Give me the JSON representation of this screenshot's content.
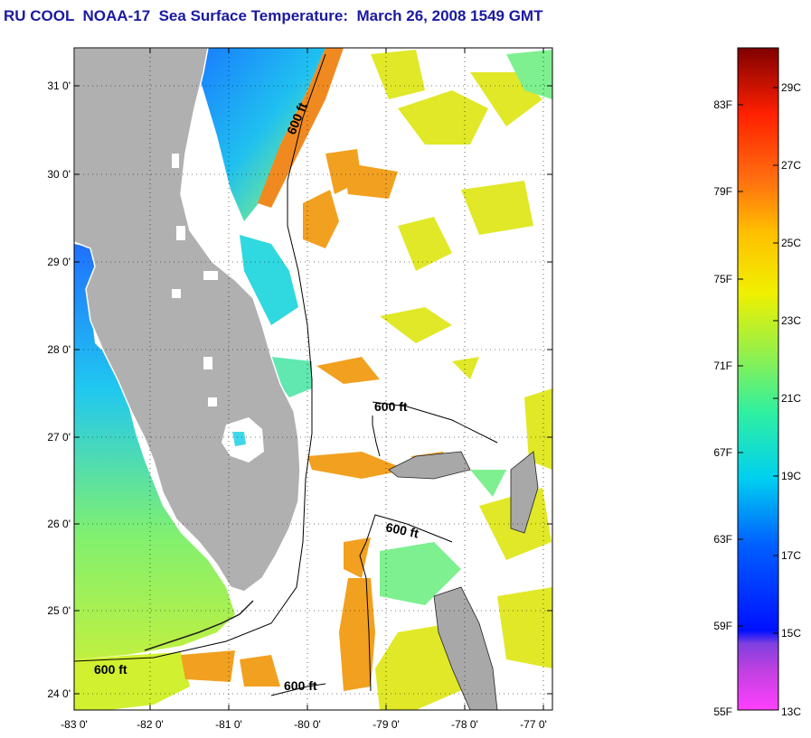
{
  "title": "RU COOL  NOAA-17  Sea Surface Temperature:  March 26, 2008 1549 GMT",
  "axes": {
    "lat_ticks": [
      "31 0'",
      "30 0'",
      "29 0'",
      "28 0'",
      "27 0'",
      "26 0'",
      "25 0'",
      "24 0'"
    ],
    "lon_ticks": [
      "-83 0'",
      "-82 0'",
      "-81 0'",
      "-80 0'",
      "-79 0'",
      "-78 0'",
      "-77 0'"
    ]
  },
  "isobath_labels": [
    "600 ft",
    "600 ft",
    "600 ft",
    "600 ft",
    "600 ft"
  ],
  "colorbar": {
    "fahrenheit": [
      "83F",
      "79F",
      "75F",
      "71F",
      "67F",
      "63F",
      "59F",
      "55F"
    ],
    "celsius": [
      "29C",
      "27C",
      "25C",
      "23C",
      "21C",
      "19C",
      "17C",
      "15C",
      "13C"
    ]
  },
  "colors": {
    "land": "#b0b0b0",
    "water_warm": "#f08a10",
    "water_mid": "#e8e820",
    "water_cool": "#40e0d0",
    "water_cold": "#1060ff",
    "title": "#1a1aa0"
  }
}
